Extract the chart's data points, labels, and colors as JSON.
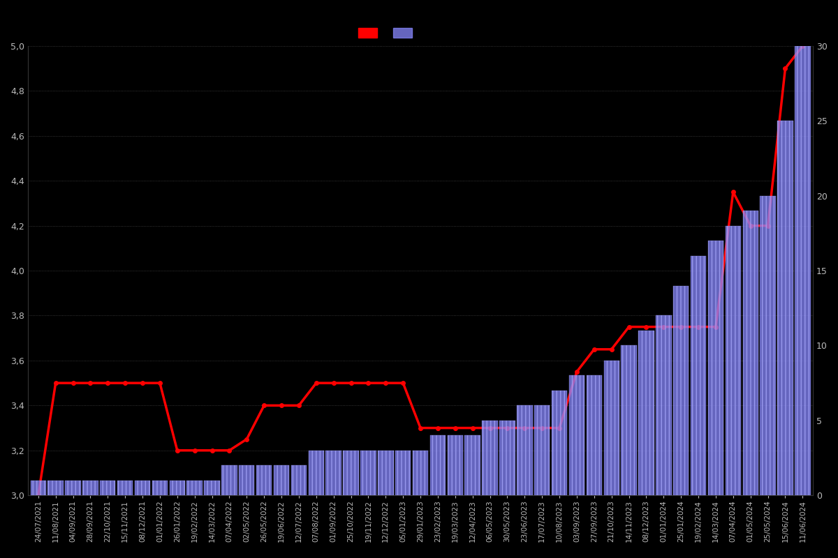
{
  "background_color": "#000000",
  "bar_color": "#8888ff",
  "bar_edge_color": "#aaaaff",
  "line_color": "#ff0000",
  "grid_color": "#555555",
  "text_color": "#bbbbbb",
  "ylim_left": [
    3.0,
    5.0
  ],
  "ylim_right": [
    0,
    30
  ],
  "dates": [
    "24/07/2021",
    "11/08/2021",
    "04/09/2021",
    "28/09/2021",
    "22/10/2021",
    "15/11/2021",
    "08/12/2021",
    "01/01/2022",
    "26/01/2022",
    "19/02/2022",
    "14/03/2022",
    "07/04/2022",
    "02/05/2022",
    "26/05/2022",
    "19/06/2022",
    "12/07/2022",
    "07/08/2022",
    "01/09/2022",
    "25/10/2022",
    "19/11/2022",
    "12/12/2022",
    "05/01/2023",
    "29/01/2023",
    "23/02/2023",
    "19/03/2023",
    "12/04/2023",
    "06/05/2023",
    "30/05/2023",
    "23/06/2023",
    "17/07/2023",
    "10/08/2023",
    "03/09/2023",
    "27/09/2023",
    "21/10/2023",
    "14/11/2023",
    "08/12/2023",
    "01/01/2024",
    "25/01/2024",
    "19/02/2024",
    "14/03/2024",
    "07/04/2024",
    "01/05/2024",
    "25/05/2024",
    "15/06/2024",
    "11/06/2024"
  ],
  "bar_values": [
    1,
    1,
    1,
    1,
    1,
    1,
    1,
    1,
    1,
    1,
    1,
    2,
    2,
    2,
    2,
    2,
    3,
    3,
    3,
    3,
    3,
    3,
    3,
    4,
    4,
    4,
    5,
    5,
    6,
    6,
    7,
    8,
    8,
    9,
    10,
    11,
    12,
    14,
    16,
    17,
    18,
    19,
    20,
    25,
    30
  ],
  "line_values": [
    3.0,
    3.5,
    3.5,
    3.5,
    3.5,
    3.5,
    3.5,
    3.5,
    3.2,
    3.2,
    3.2,
    3.2,
    3.25,
    3.4,
    3.4,
    3.4,
    3.5,
    3.5,
    3.5,
    3.5,
    3.5,
    3.5,
    3.3,
    3.3,
    3.3,
    3.3,
    3.3,
    3.3,
    3.3,
    3.3,
    3.3,
    3.55,
    3.65,
    3.65,
    3.75,
    3.75,
    3.75,
    3.75,
    3.75,
    3.75,
    4.35,
    4.2,
    4.2,
    4.9,
    5.0
  ],
  "yticks_left": [
    3.0,
    3.2,
    3.4,
    3.6,
    3.8,
    4.0,
    4.2,
    4.4,
    4.6,
    4.8,
    5.0
  ],
  "yticks_right": [
    0,
    5,
    10,
    15,
    20,
    25,
    30
  ]
}
